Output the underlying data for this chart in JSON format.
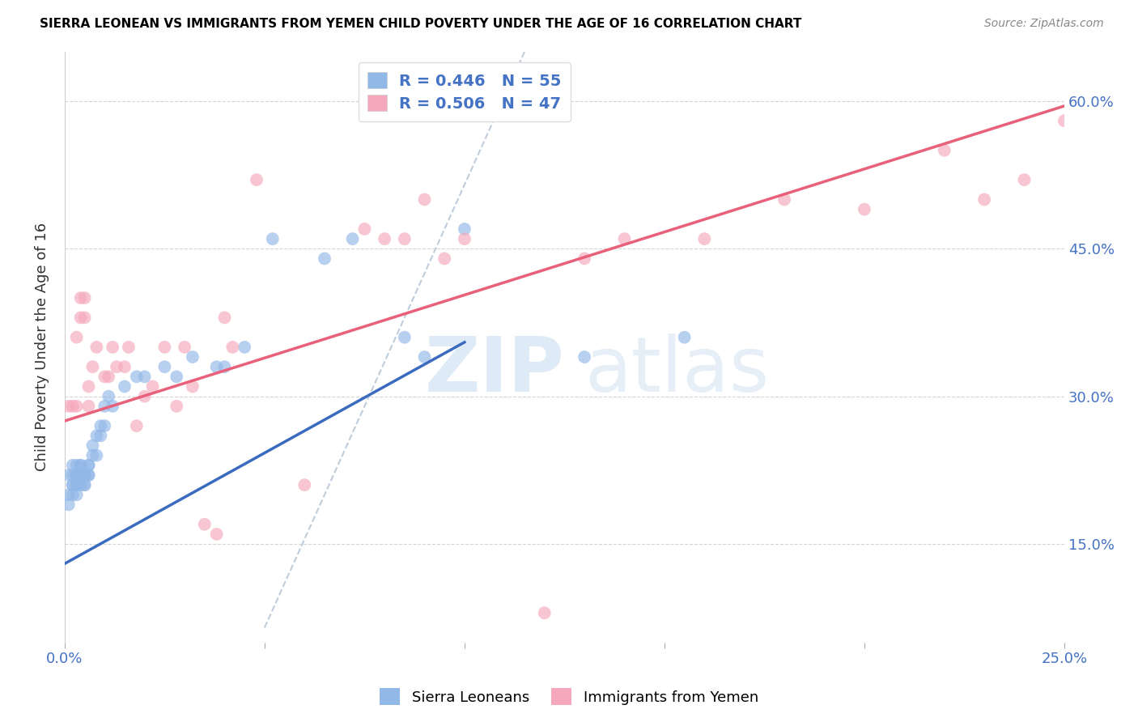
{
  "title": "SIERRA LEONEAN VS IMMIGRANTS FROM YEMEN CHILD POVERTY UNDER THE AGE OF 16 CORRELATION CHART",
  "source": "Source: ZipAtlas.com",
  "ylabel": "Child Poverty Under the Age of 16",
  "yticks": [
    0.15,
    0.3,
    0.45,
    0.6
  ],
  "ytick_labels": [
    "15.0%",
    "30.0%",
    "45.0%",
    "60.0%"
  ],
  "xlim": [
    0.0,
    0.25
  ],
  "ylim": [
    0.05,
    0.65
  ],
  "legend_r1": "R = 0.446",
  "legend_n1": "N = 55",
  "legend_r2": "R = 0.506",
  "legend_n2": "N = 47",
  "color_sl": "#92b8e8",
  "color_ye": "#f5a8bb",
  "line_color_sl": "#3a6bbf",
  "line_color_ye": "#e8607a",
  "diag_color": "#b8c8d8",
  "sl_line_x0": 0.0,
  "sl_line_y0": 0.13,
  "sl_line_x1": 0.1,
  "sl_line_y1": 0.355,
  "ye_line_x0": 0.0,
  "ye_line_y0": 0.275,
  "ye_line_x1": 0.25,
  "ye_line_y1": 0.595,
  "sierra_x": [
    0.001,
    0.001,
    0.001,
    0.002,
    0.002,
    0.002,
    0.002,
    0.002,
    0.003,
    0.003,
    0.003,
    0.003,
    0.003,
    0.003,
    0.004,
    0.004,
    0.004,
    0.004,
    0.004,
    0.005,
    0.005,
    0.005,
    0.005,
    0.005,
    0.006,
    0.006,
    0.006,
    0.006,
    0.007,
    0.007,
    0.008,
    0.008,
    0.009,
    0.009,
    0.01,
    0.01,
    0.011,
    0.012,
    0.015,
    0.018,
    0.02,
    0.025,
    0.028,
    0.032,
    0.038,
    0.04,
    0.045,
    0.052,
    0.065,
    0.072,
    0.085,
    0.09,
    0.1,
    0.13,
    0.155
  ],
  "sierra_y": [
    0.2,
    0.19,
    0.22,
    0.21,
    0.2,
    0.21,
    0.22,
    0.23,
    0.2,
    0.21,
    0.22,
    0.21,
    0.23,
    0.22,
    0.21,
    0.22,
    0.23,
    0.22,
    0.23,
    0.21,
    0.22,
    0.22,
    0.21,
    0.22,
    0.23,
    0.22,
    0.22,
    0.23,
    0.24,
    0.25,
    0.24,
    0.26,
    0.26,
    0.27,
    0.27,
    0.29,
    0.3,
    0.29,
    0.31,
    0.32,
    0.32,
    0.33,
    0.32,
    0.34,
    0.33,
    0.33,
    0.35,
    0.46,
    0.44,
    0.46,
    0.36,
    0.34,
    0.47,
    0.34,
    0.36
  ],
  "yemen_x": [
    0.001,
    0.002,
    0.003,
    0.003,
    0.004,
    0.004,
    0.005,
    0.005,
    0.006,
    0.006,
    0.007,
    0.008,
    0.01,
    0.011,
    0.012,
    0.013,
    0.015,
    0.016,
    0.018,
    0.02,
    0.022,
    0.025,
    0.028,
    0.03,
    0.032,
    0.035,
    0.038,
    0.04,
    0.042,
    0.048,
    0.06,
    0.075,
    0.08,
    0.085,
    0.09,
    0.095,
    0.1,
    0.12,
    0.14,
    0.16,
    0.18,
    0.2,
    0.22,
    0.23,
    0.24,
    0.25,
    0.13
  ],
  "yemen_y": [
    0.29,
    0.29,
    0.29,
    0.36,
    0.38,
    0.4,
    0.38,
    0.4,
    0.29,
    0.31,
    0.33,
    0.35,
    0.32,
    0.32,
    0.35,
    0.33,
    0.33,
    0.35,
    0.27,
    0.3,
    0.31,
    0.35,
    0.29,
    0.35,
    0.31,
    0.17,
    0.16,
    0.38,
    0.35,
    0.52,
    0.21,
    0.47,
    0.46,
    0.46,
    0.5,
    0.44,
    0.46,
    0.08,
    0.46,
    0.46,
    0.5,
    0.49,
    0.55,
    0.5,
    0.52,
    0.58,
    0.44
  ]
}
